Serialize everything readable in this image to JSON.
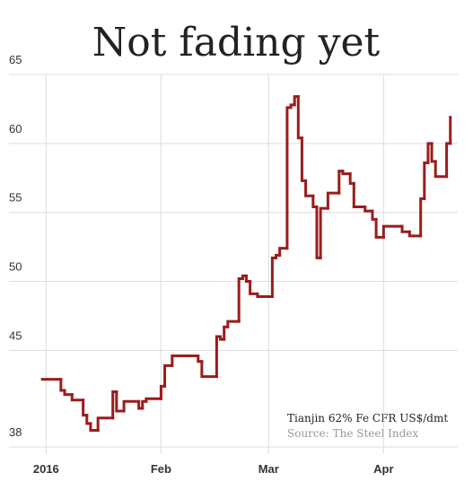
{
  "chart_data": {
    "type": "line",
    "step": true,
    "title": "Not fading yet",
    "annotations": [
      "Tianjin 62% Fe CFR US$/dmt",
      "Source: The Steel Index"
    ],
    "color": "#9b1c1c",
    "grid": true,
    "xlim": [
      -10,
      111
    ],
    "xticks": [
      {
        "value": 0,
        "label": "2016"
      },
      {
        "value": 31,
        "label": "Feb"
      },
      {
        "value": 60,
        "label": "Mar"
      },
      {
        "value": 91,
        "label": "Apr"
      }
    ],
    "ylim": [
      38,
      65
    ],
    "yticks": [
      38,
      45,
      50,
      55,
      60,
      65
    ],
    "x": [
      -1,
      4,
      5,
      7,
      10,
      11,
      12,
      14,
      18,
      19,
      21,
      25,
      26,
      27,
      31,
      32,
      34,
      41,
      42,
      46,
      47,
      48,
      49,
      52,
      53,
      54,
      55,
      57,
      61,
      62,
      63,
      65,
      66,
      67,
      68,
      69,
      70,
      72,
      73,
      74,
      76,
      79,
      80,
      82,
      83,
      86,
      88,
      89,
      91,
      96,
      98,
      101,
      102,
      103,
      104,
      105,
      108,
      109
    ],
    "values": [
      42.9,
      42.1,
      41.8,
      41.4,
      40.3,
      39.7,
      39.2,
      40.1,
      42.0,
      40.6,
      41.3,
      40.8,
      41.3,
      41.5,
      42.4,
      43.9,
      44.6,
      44.2,
      43.1,
      46.0,
      45.8,
      46.7,
      47.1,
      50.2,
      50.4,
      50.0,
      49.1,
      48.9,
      51.7,
      51.9,
      52.4,
      62.6,
      62.8,
      63.4,
      60.4,
      57.3,
      56.2,
      55.4,
      51.7,
      55.3,
      56.4,
      58.0,
      57.8,
      57.1,
      55.4,
      55.1,
      54.5,
      53.2,
      54.0,
      53.6,
      53.3,
      56.0,
      58.6,
      60.0,
      58.7,
      57.6,
      60.0,
      61.9
    ]
  }
}
